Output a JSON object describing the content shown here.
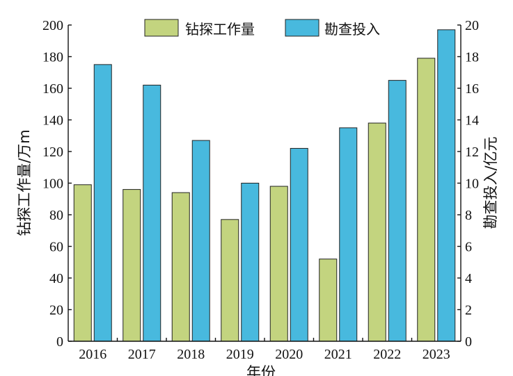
{
  "chart_data": {
    "type": "bar",
    "categories": [
      "2016",
      "2017",
      "2018",
      "2019",
      "2020",
      "2021",
      "2022",
      "2023"
    ],
    "xlabel": "年份",
    "ylabel_left": "钻探工作量/万m",
    "ylabel_right": "勘查投入/亿元",
    "ylim_left": [
      0,
      200
    ],
    "ylim_right": [
      0,
      20
    ],
    "yticks_left": [
      "0",
      "20",
      "40",
      "60",
      "80",
      "100",
      "120",
      "140",
      "160",
      "180",
      "200"
    ],
    "yticks_right": [
      "0",
      "2",
      "4",
      "6",
      "8",
      "10",
      "12",
      "14",
      "16",
      "18",
      "20"
    ],
    "grid": false,
    "legend_position": "top-center",
    "series": [
      {
        "name": "钻探工作量",
        "axis": "left",
        "color": "#c3d47f",
        "values": [
          99,
          96,
          94,
          77,
          98,
          52,
          138,
          179
        ]
      },
      {
        "name": "勘查投入",
        "axis": "right",
        "color": "#48b9de",
        "values": [
          17.5,
          16.2,
          12.7,
          10.0,
          12.2,
          13.5,
          16.5,
          19.7
        ]
      }
    ]
  }
}
